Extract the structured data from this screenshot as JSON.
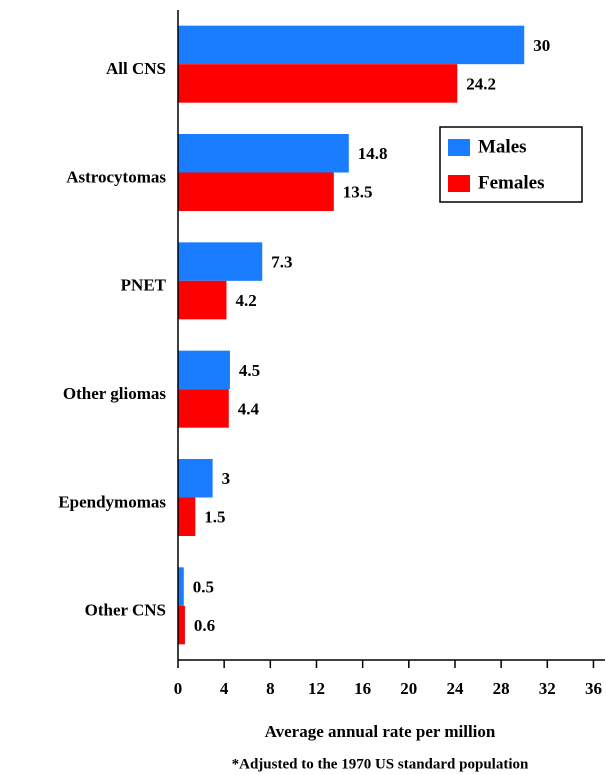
{
  "chart_data": {
    "type": "hbar",
    "categories": [
      "All CNS",
      "Astrocytomas",
      "PNET",
      "Other gliomas",
      "Ependymomas",
      "Other CNS"
    ],
    "series": [
      {
        "name": "Males",
        "color": "#1a7cff",
        "values": [
          30,
          14.8,
          7.3,
          4.5,
          3,
          0.5
        ]
      },
      {
        "name": "Females",
        "color": "#ff0000",
        "values": [
          24.2,
          13.5,
          4.2,
          4.4,
          1.5,
          0.6
        ]
      }
    ],
    "xlabel": "Average annual rate per million",
    "footnote": "*Adjusted to the 1970 US standard population",
    "xlim": [
      0,
      37
    ],
    "xticks": [
      0,
      4,
      8,
      12,
      16,
      20,
      24,
      28,
      32,
      36
    ],
    "legend": "upper right",
    "grid": false
  }
}
